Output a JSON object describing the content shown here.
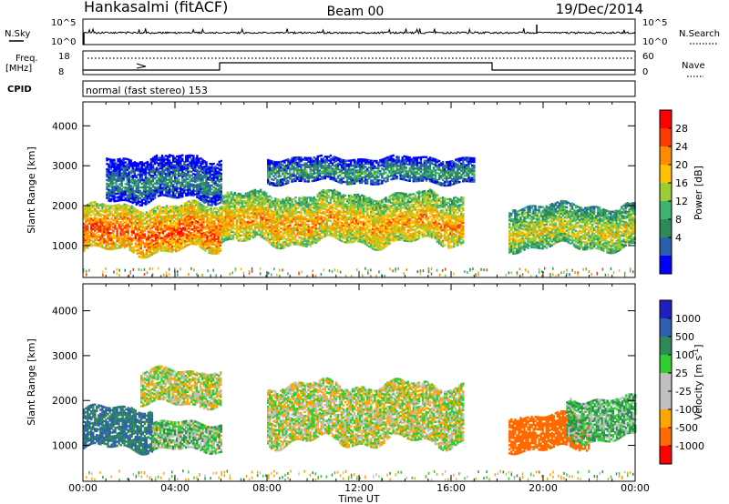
{
  "header": {
    "station": "Hankasalmi (fitACF)",
    "beam": "Beam 00",
    "date": "19/Dec/2014"
  },
  "strips": {
    "nsky_label": "N.Sky",
    "nsky_ticks": [
      "10^5",
      "10^0"
    ],
    "nsearch_label": "N.Search",
    "nsearch_ticks": [
      "10^5",
      "10^0"
    ],
    "freq_label_line1": "Freq.",
    "freq_label_line2": "[MHz]",
    "freq_ticks": [
      "18",
      "8"
    ],
    "nave_label": "Nave",
    "nave_ticks": [
      "60",
      "0"
    ],
    "cpid_label": "CPID",
    "cpid_text": "normal (fast stereo) 153"
  },
  "colorbars": {
    "power": {
      "label": "Power [dB]",
      "ticks": [
        "28",
        "24",
        "20",
        "16",
        "12",
        "8",
        "4"
      ],
      "colors": [
        "#ff0000",
        "#ff3a00",
        "#ff8c00",
        "#ffc000",
        "#9acd32",
        "#3cb371",
        "#2e8b57",
        "#2a5fb0",
        "#0000ff"
      ]
    },
    "velocity": {
      "label": "Velocity [m s",
      "label_sup": "-1",
      "label_end": "]",
      "ticks": [
        "1000",
        "500",
        "100",
        "25",
        "-25",
        "-100",
        "-500",
        "-1000"
      ],
      "colors": [
        "#2020c0",
        "#2e5fb0",
        "#2e8b57",
        "#32cd32",
        "#c0c0c0",
        "#c0c0c0",
        "#ffa500",
        "#ff6a00",
        "#ff0000"
      ]
    }
  },
  "chart_data": [
    {
      "type": "heatmap",
      "title": "Hankasalmi (fitACF) Beam 00 19/Dec/2014",
      "parameter": "Power",
      "xlabel": "",
      "ylabel": "Slant Range [km]",
      "x_ticks": [
        "00:00",
        "04:00",
        "08:00",
        "12:00",
        "16:00",
        "20:00",
        "00:00"
      ],
      "y_ticks": [
        1000,
        2000,
        3000,
        4000
      ],
      "ylim": [
        200,
        4600
      ],
      "colorbar_range_dB": [
        0,
        30
      ],
      "regions": [
        {
          "t_start": 0.0,
          "t_end": 6.0,
          "r_low": 700,
          "r_high": 2200,
          "level_dB": 26
        },
        {
          "t_start": 1.0,
          "t_end": 6.0,
          "r_low": 2000,
          "r_high": 3400,
          "level_dB": 8
        },
        {
          "t_start": 6.0,
          "t_end": 16.5,
          "r_low": 900,
          "r_high": 2500,
          "level_dB": 22
        },
        {
          "t_start": 8.0,
          "t_end": 17.0,
          "r_low": 2500,
          "r_high": 3300,
          "level_dB": 10
        },
        {
          "t_start": 18.5,
          "t_end": 24.0,
          "r_low": 800,
          "r_high": 2200,
          "level_dB": 18
        }
      ]
    },
    {
      "type": "heatmap",
      "parameter": "Velocity",
      "xlabel": "Time UT",
      "ylabel": "Slant Range [km]",
      "x_ticks": [
        "00:00",
        "04:00",
        "08:00",
        "12:00",
        "16:00",
        "20:00",
        "00:00"
      ],
      "y_ticks": [
        1000,
        2000,
        3000,
        4000
      ],
      "ylim": [
        200,
        4600
      ],
      "colorbar_range_ms": [
        -1000,
        1000
      ],
      "regions": [
        {
          "t_start": 0.0,
          "t_end": 3.0,
          "r_low": 800,
          "r_high": 2000,
          "level_ms": 300
        },
        {
          "t_start": 3.0,
          "t_end": 6.0,
          "r_low": 800,
          "r_high": 1600,
          "level_ms": 60
        },
        {
          "t_start": 2.5,
          "t_end": 6.0,
          "r_low": 1800,
          "r_high": 2800,
          "level_ms": 0
        },
        {
          "t_start": 8.0,
          "t_end": 16.5,
          "r_low": 900,
          "r_high": 2600,
          "level_ms": 0
        },
        {
          "t_start": 18.5,
          "t_end": 22.0,
          "r_low": 800,
          "r_high": 1800,
          "level_ms": -400
        },
        {
          "t_start": 21.0,
          "t_end": 24.0,
          "r_low": 1000,
          "r_high": 2200,
          "level_ms": 80
        }
      ]
    }
  ],
  "time_axis_label": "Time UT"
}
